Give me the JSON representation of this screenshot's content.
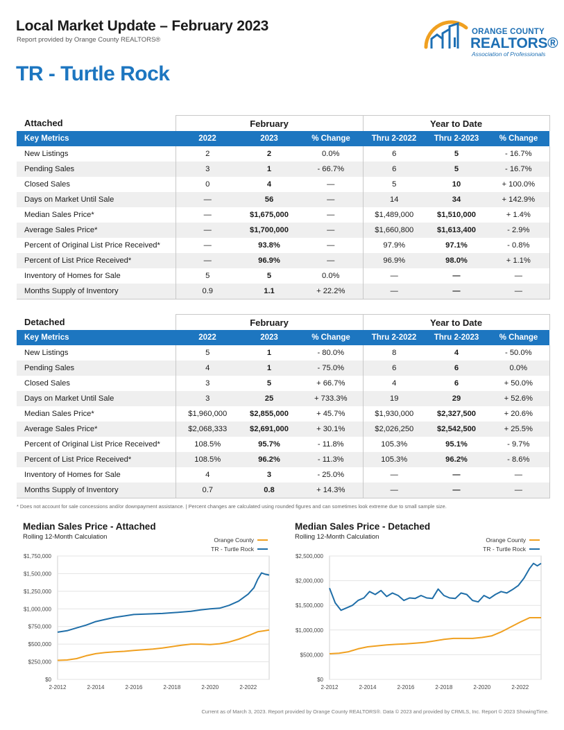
{
  "header": {
    "title": "Local Market Update – February 2023",
    "subtitle": "Report provided by Orange County REALTORS®",
    "area": "TR - Turtle Rock"
  },
  "logo": {
    "line1": "ORANGE COUNTY",
    "line2": "REALTORS®",
    "line3": "Association of Professionals"
  },
  "brand_colors": {
    "accent_blue": "#1d76c0",
    "orange": "#f0a020",
    "dark_blue": "#1f6ea8"
  },
  "attached": {
    "name": "Attached",
    "group_month": "February",
    "group_ytd": "Year to Date",
    "columns": [
      "Key Metrics",
      "2022",
      "2023",
      "% Change",
      "Thru 2-2022",
      "Thru 2-2023",
      "% Change"
    ],
    "rows": [
      [
        "New Listings",
        "2",
        "2",
        "0.0%",
        "6",
        "5",
        "- 16.7%"
      ],
      [
        "Pending Sales",
        "3",
        "1",
        "- 66.7%",
        "6",
        "5",
        "- 16.7%"
      ],
      [
        "Closed Sales",
        "0",
        "4",
        "—",
        "5",
        "10",
        "+ 100.0%"
      ],
      [
        "Days on Market Until Sale",
        "—",
        "56",
        "—",
        "14",
        "34",
        "+ 142.9%"
      ],
      [
        "Median Sales Price*",
        "—",
        "$1,675,000",
        "—",
        "$1,489,000",
        "$1,510,000",
        "+ 1.4%"
      ],
      [
        "Average Sales Price*",
        "—",
        "$1,700,000",
        "—",
        "$1,660,800",
        "$1,613,400",
        "- 2.9%"
      ],
      [
        "Percent of Original List Price Received*",
        "—",
        "93.8%",
        "—",
        "97.9%",
        "97.1%",
        "- 0.8%"
      ],
      [
        "Percent of List Price Received*",
        "—",
        "96.9%",
        "—",
        "96.9%",
        "98.0%",
        "+ 1.1%"
      ],
      [
        "Inventory of Homes for Sale",
        "5",
        "5",
        "0.0%",
        "—",
        "—",
        "—"
      ],
      [
        "Months Supply of Inventory",
        "0.9",
        "1.1",
        "+ 22.2%",
        "—",
        "—",
        "—"
      ]
    ]
  },
  "detached": {
    "name": "Detached",
    "group_month": "February",
    "group_ytd": "Year to Date",
    "columns": [
      "Key Metrics",
      "2022",
      "2023",
      "% Change",
      "Thru 2-2022",
      "Thru 2-2023",
      "% Change"
    ],
    "rows": [
      [
        "New Listings",
        "5",
        "1",
        "- 80.0%",
        "8",
        "4",
        "- 50.0%"
      ],
      [
        "Pending Sales",
        "4",
        "1",
        "- 75.0%",
        "6",
        "6",
        "0.0%"
      ],
      [
        "Closed Sales",
        "3",
        "5",
        "+ 66.7%",
        "4",
        "6",
        "+ 50.0%"
      ],
      [
        "Days on Market Until Sale",
        "3",
        "25",
        "+ 733.3%",
        "19",
        "29",
        "+ 52.6%"
      ],
      [
        "Median Sales Price*",
        "$1,960,000",
        "$2,855,000",
        "+ 45.7%",
        "$1,930,000",
        "$2,327,500",
        "+ 20.6%"
      ],
      [
        "Average Sales Price*",
        "$2,068,333",
        "$2,691,000",
        "+ 30.1%",
        "$2,026,250",
        "$2,542,500",
        "+ 25.5%"
      ],
      [
        "Percent of Original List Price Received*",
        "108.5%",
        "95.7%",
        "- 11.8%",
        "105.3%",
        "95.1%",
        "- 9.7%"
      ],
      [
        "Percent of List Price Received*",
        "108.5%",
        "96.2%",
        "- 11.3%",
        "105.3%",
        "96.2%",
        "- 8.6%"
      ],
      [
        "Inventory of Homes for Sale",
        "4",
        "3",
        "- 25.0%",
        "—",
        "—",
        "—"
      ],
      [
        "Months Supply of Inventory",
        "0.7",
        "0.8",
        "+ 14.3%",
        "—",
        "—",
        "—"
      ]
    ]
  },
  "footnote": "* Does not account for sale concessions and/or downpayment assistance.  |  Percent changes are calculated using rounded figures and can sometimes look extreme due to small sample size.",
  "footer": "Current as of March 3, 2023. Report provided by Orange County REALTORS®. Data © 2023 and provided by CRMLS, Inc. Report © 2023 ShowingTime.",
  "chart_data": [
    {
      "type": "line",
      "title": "Median Sales Price - Attached",
      "subtitle": "Rolling 12-Month Calculation",
      "xlabel": "",
      "ylabel": "",
      "x_ticks": [
        "2-2012",
        "2-2014",
        "2-2016",
        "2-2018",
        "2-2020",
        "2-2022"
      ],
      "y_ticks": [
        "$0",
        "$250,000",
        "$500,000",
        "$750,000",
        "$1,000,000",
        "$1,250,000",
        "$1,500,000",
        "$1,750,000"
      ],
      "ylim": [
        0,
        1750000
      ],
      "xlim": [
        2012.0,
        2023.1
      ],
      "legend_position": "top-right",
      "grid": true,
      "series": [
        {
          "name": "Orange County",
          "color": "#f0a020",
          "x": [
            2012.0,
            2012.5,
            2013.0,
            2013.5,
            2014.0,
            2014.5,
            2015.0,
            2015.5,
            2016.0,
            2016.5,
            2017.0,
            2017.5,
            2018.0,
            2018.5,
            2019.0,
            2019.5,
            2020.0,
            2020.5,
            2021.0,
            2021.5,
            2022.0,
            2022.5,
            2023.1
          ],
          "y": [
            270000,
            275000,
            295000,
            335000,
            365000,
            380000,
            390000,
            398000,
            410000,
            420000,
            430000,
            445000,
            465000,
            485000,
            500000,
            500000,
            495000,
            505000,
            530000,
            570000,
            620000,
            675000,
            700000
          ]
        },
        {
          "name": "TR - Turtle Rock",
          "color": "#1f6ea8",
          "x": [
            2012.0,
            2012.5,
            2013.0,
            2013.5,
            2014.0,
            2014.5,
            2015.0,
            2015.5,
            2016.0,
            2016.5,
            2017.0,
            2017.5,
            2018.0,
            2018.5,
            2019.0,
            2019.5,
            2020.0,
            2020.5,
            2021.0,
            2021.5,
            2022.0,
            2022.3,
            2022.5,
            2022.7,
            2022.9,
            2023.1
          ],
          "y": [
            670000,
            690000,
            730000,
            770000,
            820000,
            850000,
            880000,
            900000,
            920000,
            925000,
            930000,
            935000,
            945000,
            955000,
            965000,
            985000,
            1000000,
            1010000,
            1050000,
            1110000,
            1210000,
            1300000,
            1420000,
            1510000,
            1490000,
            1480000
          ]
        }
      ]
    },
    {
      "type": "line",
      "title": "Median Sales Price - Detached",
      "subtitle": "Rolling 12-Month Calculation",
      "xlabel": "",
      "ylabel": "",
      "x_ticks": [
        "2-2012",
        "2-2014",
        "2-2016",
        "2-2018",
        "2-2020",
        "2-2022"
      ],
      "y_ticks": [
        "$0",
        "$500,000",
        "$1,000,000",
        "$1,500,000",
        "$2,000,000",
        "$2,500,000"
      ],
      "ylim": [
        0,
        2500000
      ],
      "xlim": [
        2012.0,
        2023.1
      ],
      "legend_position": "top-right",
      "grid": true,
      "series": [
        {
          "name": "Orange County",
          "color": "#f0a020",
          "x": [
            2012.0,
            2012.5,
            2013.0,
            2013.5,
            2014.0,
            2014.5,
            2015.0,
            2015.5,
            2016.0,
            2016.5,
            2017.0,
            2017.5,
            2018.0,
            2018.5,
            2019.0,
            2019.5,
            2020.0,
            2020.5,
            2021.0,
            2021.5,
            2022.0,
            2022.5,
            2023.1
          ],
          "y": [
            520000,
            530000,
            560000,
            620000,
            660000,
            680000,
            700000,
            710000,
            720000,
            735000,
            750000,
            780000,
            810000,
            830000,
            830000,
            830000,
            850000,
            880000,
            960000,
            1060000,
            1160000,
            1250000,
            1250000
          ]
        },
        {
          "name": "TR - Turtle Rock",
          "color": "#1f6ea8",
          "x": [
            2012.0,
            2012.3,
            2012.6,
            2012.9,
            2013.2,
            2013.5,
            2013.8,
            2014.1,
            2014.4,
            2014.7,
            2015.0,
            2015.3,
            2015.6,
            2015.9,
            2016.2,
            2016.5,
            2016.8,
            2017.1,
            2017.4,
            2017.7,
            2018.0,
            2018.3,
            2018.6,
            2018.9,
            2019.2,
            2019.5,
            2019.8,
            2020.1,
            2020.4,
            2020.7,
            2021.0,
            2021.3,
            2021.6,
            2021.9,
            2022.2,
            2022.5,
            2022.7,
            2022.9,
            2023.1
          ],
          "y": [
            1850000,
            1550000,
            1400000,
            1450000,
            1500000,
            1600000,
            1650000,
            1780000,
            1720000,
            1800000,
            1680000,
            1750000,
            1700000,
            1600000,
            1650000,
            1640000,
            1700000,
            1650000,
            1640000,
            1830000,
            1700000,
            1650000,
            1640000,
            1750000,
            1720000,
            1600000,
            1570000,
            1700000,
            1640000,
            1720000,
            1780000,
            1750000,
            1820000,
            1900000,
            2050000,
            2250000,
            2350000,
            2300000,
            2350000
          ]
        }
      ]
    }
  ]
}
